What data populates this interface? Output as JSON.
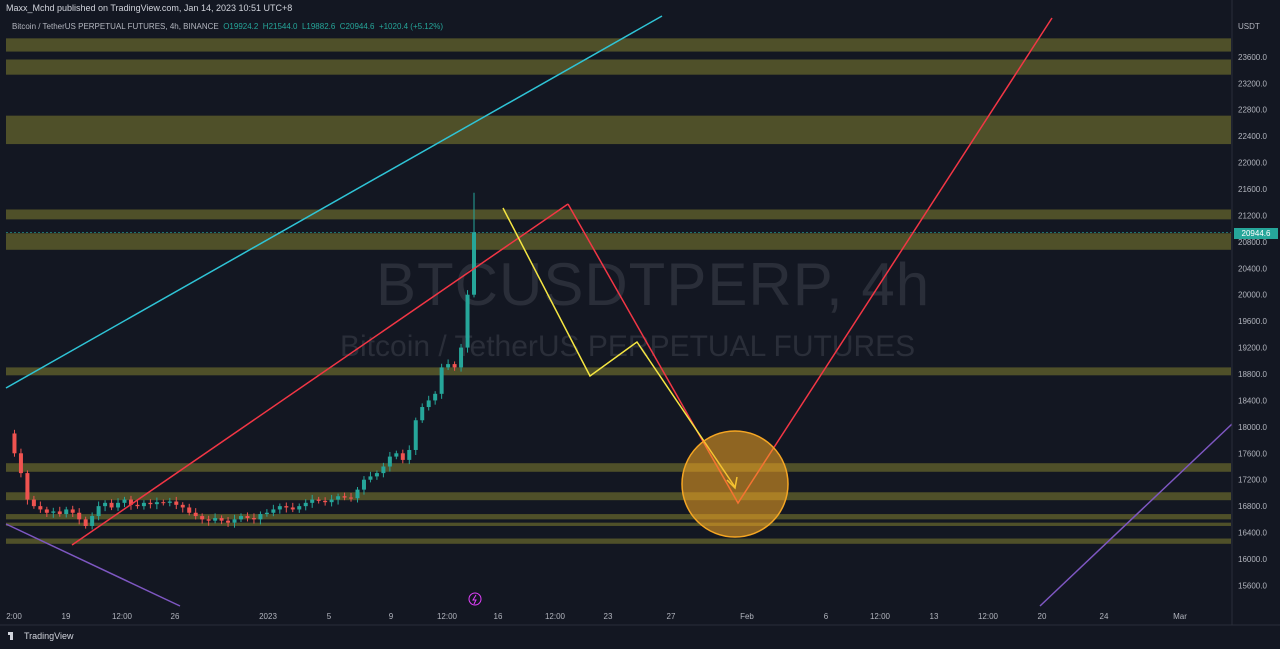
{
  "header": {
    "publish_text": "Maxx_Mchd published on TradingView.com, Jan 14, 2023 10:51 UTC+8",
    "symbol_text": "Bitcoin / TetherUS PERPETUAL FUTURES, 4h, BINANCE",
    "ohlc": {
      "o": "O19924.2",
      "h": "H21544.0",
      "l": "L19882.6",
      "c": "C20944.6",
      "chg": "+1020.4 (+5.12%)"
    }
  },
  "watermark": {
    "symbol": "BTCUSDTPERP, 4h",
    "description": "Bitcoin / TetherUS PERPETUAL FUTURES"
  },
  "footer": {
    "brand": "TradingView"
  },
  "colors": {
    "background": "#131722",
    "zone": "#5a5a2a",
    "up": "#26a69a",
    "down": "#ef5350",
    "cyan_line": "#2fc4d6",
    "red_line": "#f23645",
    "yellow_line": "#f5e642",
    "purple_line": "#7e57c2",
    "target_circle": "#f5a623"
  },
  "chart_data": {
    "type": "candlestick",
    "title": "BTCUSDTPERP, 4h",
    "ylabel": "USDT",
    "y_ticks": [
      15600,
      16000,
      16400,
      16800,
      17200,
      17600,
      18000,
      18400,
      18800,
      19200,
      19600,
      20000,
      20400,
      20800,
      21200,
      21600,
      22000,
      22400,
      22800,
      23200,
      23600
    ],
    "x_tick_labels": [
      "2:00",
      "19",
      "12:00",
      "26",
      "2023",
      "5",
      "9",
      "12:00",
      "16",
      "12:00",
      "23",
      "27",
      "Feb",
      "6",
      "12:00",
      "13",
      "12:00",
      "20",
      "24",
      "Mar"
    ],
    "last_price": "20944.6",
    "ylim": [
      15400,
      23900
    ],
    "resistance_zones": [
      [
        23680,
        23880
      ],
      [
        23330,
        23560
      ],
      [
        22280,
        22710
      ],
      [
        21140,
        21290
      ],
      [
        20680,
        20930
      ],
      [
        18780,
        18900
      ],
      [
        17320,
        17450
      ],
      [
        16890,
        17010
      ],
      [
        16600,
        16680
      ],
      [
        16500,
        16550
      ],
      [
        16230,
        16310
      ]
    ],
    "price_path": [
      17900,
      17600,
      17300,
      16900,
      16800,
      16750,
      16700,
      16720,
      16680,
      16750,
      16700,
      16600,
      16500,
      16650,
      16800,
      16850,
      16780,
      16850,
      16900,
      16820,
      16800,
      16850,
      16830,
      16860,
      16850,
      16870,
      16820,
      16780,
      16700,
      16650,
      16600,
      16580,
      16620,
      16580,
      16550,
      16600,
      16650,
      16620,
      16600,
      16680,
      16700,
      16750,
      16800,
      16780,
      16750,
      16800,
      16850,
      16900,
      16880,
      16860,
      16900,
      16950,
      16930,
      16920,
      17050,
      17200,
      17250,
      17300,
      17400,
      17550,
      17600,
      17500,
      17650,
      18100,
      18300,
      18400,
      18500,
      18900,
      18950,
      18900,
      19200,
      20000,
      20944.6
    ]
  }
}
